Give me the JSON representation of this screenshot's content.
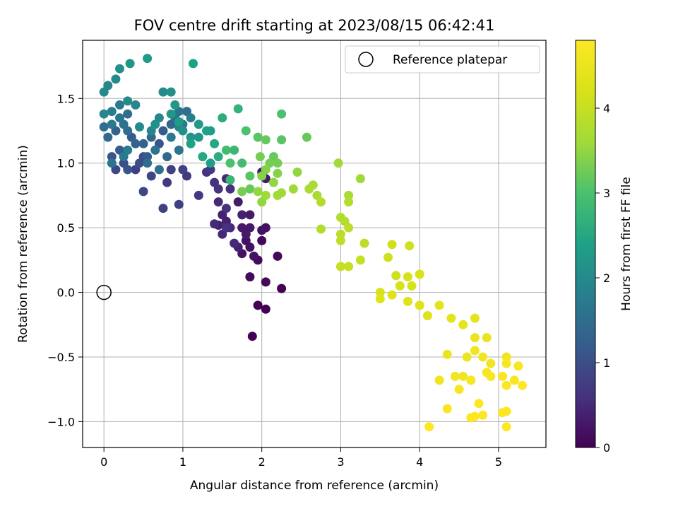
{
  "chart_data": {
    "type": "scatter",
    "title": "FOV centre drift starting at 2023/08/15 06:42:41",
    "xlabel": "Angular distance from reference (arcmin)",
    "ylabel": "Rotation from reference (arcmin)",
    "colorbar_label": "Hours from first FF file",
    "colormap": "viridis",
    "xlim": [
      -0.27,
      5.6
    ],
    "ylim": [
      -1.2,
      1.95
    ],
    "color_range": [
      0,
      4.8
    ],
    "x_ticks": [
      "0",
      "1",
      "2",
      "3",
      "4",
      "5"
    ],
    "y_ticks": [
      "−1.0",
      "−0.5",
      "0.0",
      "0.5",
      "1.0",
      "1.5"
    ],
    "colorbar_ticks": [
      "0",
      "1",
      "2",
      "3",
      "4"
    ],
    "grid": true,
    "legend_position": "top-right",
    "reference": {
      "name": "Reference platepar",
      "x": 0.0,
      "y": 0.0
    },
    "points": [
      [
        0.0,
        1.55,
        2.0
      ],
      [
        0.05,
        1.6,
        1.9
      ],
      [
        0.2,
        1.73,
        2.1
      ],
      [
        0.15,
        1.65,
        2.0
      ],
      [
        0.33,
        1.77,
        2.2
      ],
      [
        0.55,
        1.81,
        2.3
      ],
      [
        1.13,
        1.77,
        2.4
      ],
      [
        0.0,
        1.38,
        1.9
      ],
      [
        0.1,
        1.4,
        1.8
      ],
      [
        0.2,
        1.45,
        1.7
      ],
      [
        0.3,
        1.48,
        2.0
      ],
      [
        0.4,
        1.45,
        1.9
      ],
      [
        0.2,
        1.35,
        1.6
      ],
      [
        0.3,
        1.38,
        1.5
      ],
      [
        0.1,
        1.3,
        1.7
      ],
      [
        0.25,
        1.3,
        1.6
      ],
      [
        0.0,
        1.28,
        1.5
      ],
      [
        0.05,
        1.2,
        1.4
      ],
      [
        0.15,
        1.25,
        1.3
      ],
      [
        0.3,
        1.25,
        1.5
      ],
      [
        0.35,
        1.2,
        1.2
      ],
      [
        0.4,
        1.15,
        1.3
      ],
      [
        0.2,
        1.1,
        1.2
      ],
      [
        0.1,
        1.05,
        1.1
      ],
      [
        0.25,
        1.0,
        1.0
      ],
      [
        0.15,
        0.95,
        0.9
      ],
      [
        0.3,
        0.95,
        1.1
      ],
      [
        0.45,
        1.0,
        1.0
      ],
      [
        0.55,
        1.05,
        1.2
      ],
      [
        0.5,
        1.15,
        1.3
      ],
      [
        0.6,
        1.2,
        1.4
      ],
      [
        0.7,
        1.15,
        1.1
      ],
      [
        0.75,
        1.25,
        1.2
      ],
      [
        0.85,
        1.3,
        1.4
      ],
      [
        0.9,
        1.35,
        1.5
      ],
      [
        0.95,
        1.4,
        1.6
      ],
      [
        1.0,
        1.3,
        1.7
      ],
      [
        1.05,
        1.4,
        1.5
      ],
      [
        1.1,
        1.35,
        1.8
      ],
      [
        0.7,
        1.35,
        1.9
      ],
      [
        0.75,
        1.55,
        2.0
      ],
      [
        0.85,
        1.55,
        2.1
      ],
      [
        0.9,
        1.45,
        2.2
      ],
      [
        1.0,
        1.25,
        2.1
      ],
      [
        1.1,
        1.2,
        2.2
      ],
      [
        1.2,
        1.3,
        2.3
      ],
      [
        1.3,
        1.25,
        2.4
      ],
      [
        1.4,
        1.15,
        2.5
      ],
      [
        1.5,
        1.35,
        2.6
      ],
      [
        1.7,
        1.42,
        2.7
      ],
      [
        1.65,
        1.1,
        2.8
      ],
      [
        1.55,
        1.1,
        2.9
      ],
      [
        1.6,
        1.0,
        3.0
      ],
      [
        1.8,
        1.25,
        3.0
      ],
      [
        1.95,
        1.2,
        3.1
      ],
      [
        2.05,
        1.18,
        3.2
      ],
      [
        2.25,
        1.38,
        3.0
      ],
      [
        2.25,
        1.18,
        3.1
      ],
      [
        2.57,
        1.2,
        3.2
      ],
      [
        1.98,
        1.05,
        3.3
      ],
      [
        2.1,
        1.0,
        3.3
      ],
      [
        2.05,
        0.95,
        3.4
      ],
      [
        2.2,
        0.92,
        3.4
      ],
      [
        2.15,
        0.85,
        3.5
      ],
      [
        1.95,
        0.78,
        3.5
      ],
      [
        2.05,
        0.75,
        3.6
      ],
      [
        2.2,
        0.75,
        3.6
      ],
      [
        2.45,
        0.93,
        3.5
      ],
      [
        2.6,
        0.8,
        3.7
      ],
      [
        2.65,
        0.83,
        3.7
      ],
      [
        2.7,
        0.75,
        3.7
      ],
      [
        2.75,
        0.7,
        3.8
      ],
      [
        2.97,
        1.0,
        3.6
      ],
      [
        3.25,
        0.88,
        3.6
      ],
      [
        3.1,
        0.75,
        3.7
      ],
      [
        3.1,
        0.7,
        3.8
      ],
      [
        2.75,
        0.49,
        3.8
      ],
      [
        3.0,
        0.58,
        3.8
      ],
      [
        3.05,
        0.55,
        3.8
      ],
      [
        3.1,
        0.5,
        3.9
      ],
      [
        3.0,
        0.45,
        3.9
      ],
      [
        3.0,
        0.4,
        3.9
      ],
      [
        3.3,
        0.38,
        3.9
      ],
      [
        3.0,
        0.2,
        4.0
      ],
      [
        3.1,
        0.2,
        4.0
      ],
      [
        3.25,
        0.25,
        4.0
      ],
      [
        3.6,
        0.27,
        4.1
      ],
      [
        3.65,
        0.37,
        4.1
      ],
      [
        3.87,
        0.36,
        4.1
      ],
      [
        3.7,
        0.13,
        4.1
      ],
      [
        3.85,
        0.12,
        4.2
      ],
      [
        4.0,
        0.14,
        4.2
      ],
      [
        3.5,
        0.0,
        4.2
      ],
      [
        3.75,
        0.05,
        4.2
      ],
      [
        3.9,
        0.05,
        4.2
      ],
      [
        3.65,
        -0.02,
        4.3
      ],
      [
        3.5,
        -0.05,
        4.3
      ],
      [
        3.85,
        -0.07,
        4.3
      ],
      [
        4.0,
        -0.1,
        4.3
      ],
      [
        4.1,
        -0.18,
        4.3
      ],
      [
        4.25,
        -0.1,
        4.4
      ],
      [
        4.4,
        -0.2,
        4.4
      ],
      [
        4.55,
        -0.25,
        4.4
      ],
      [
        4.7,
        -0.2,
        4.4
      ],
      [
        4.85,
        -0.35,
        4.5
      ],
      [
        4.7,
        -0.35,
        4.5
      ],
      [
        4.35,
        -0.48,
        4.5
      ],
      [
        4.6,
        -0.5,
        4.5
      ],
      [
        4.7,
        -0.45,
        4.6
      ],
      [
        4.8,
        -0.5,
        4.6
      ],
      [
        4.9,
        -0.55,
        4.6
      ],
      [
        5.1,
        -0.5,
        4.6
      ],
      [
        5.1,
        -0.55,
        4.7
      ],
      [
        5.25,
        -0.57,
        4.7
      ],
      [
        4.85,
        -0.62,
        4.7
      ],
      [
        4.9,
        -0.65,
        4.7
      ],
      [
        5.05,
        -0.65,
        4.7
      ],
      [
        5.2,
        -0.68,
        4.7
      ],
      [
        5.1,
        -0.72,
        4.8
      ],
      [
        5.3,
        -0.72,
        4.8
      ],
      [
        4.25,
        -0.68,
        4.6
      ],
      [
        4.45,
        -0.65,
        4.6
      ],
      [
        4.55,
        -0.65,
        4.6
      ],
      [
        4.5,
        -0.75,
        4.7
      ],
      [
        4.65,
        -0.68,
        4.7
      ],
      [
        4.35,
        -0.9,
        4.7
      ],
      [
        4.75,
        -0.86,
        4.8
      ],
      [
        4.65,
        -0.97,
        4.8
      ],
      [
        4.7,
        -0.96,
        4.8
      ],
      [
        4.8,
        -0.95,
        4.8
      ],
      [
        5.05,
        -0.93,
        4.8
      ],
      [
        5.1,
        -0.92,
        4.8
      ],
      [
        5.1,
        -1.04,
        4.8
      ],
      [
        4.12,
        -1.04,
        4.8
      ],
      [
        0.5,
        1.05,
        1.0
      ],
      [
        0.6,
        0.9,
        0.9
      ],
      [
        0.4,
        0.95,
        0.8
      ],
      [
        0.85,
        0.95,
        0.8
      ],
      [
        0.8,
        0.85,
        0.7
      ],
      [
        0.5,
        0.78,
        0.9
      ],
      [
        0.75,
        0.65,
        0.8
      ],
      [
        0.95,
        0.68,
        0.8
      ],
      [
        1.0,
        0.95,
        0.8
      ],
      [
        1.05,
        0.9,
        0.7
      ],
      [
        1.2,
        0.75,
        0.7
      ],
      [
        1.3,
        0.93,
        0.6
      ],
      [
        1.35,
        0.95,
        0.7
      ],
      [
        1.4,
        0.85,
        0.6
      ],
      [
        1.45,
        0.8,
        0.6
      ],
      [
        1.55,
        0.88,
        0.5
      ],
      [
        1.6,
        0.8,
        0.6
      ],
      [
        1.55,
        0.65,
        0.6
      ],
      [
        1.45,
        0.7,
        0.5
      ],
      [
        1.4,
        0.53,
        0.5
      ],
      [
        1.5,
        0.6,
        0.4
      ],
      [
        1.55,
        0.55,
        0.4
      ],
      [
        1.6,
        0.5,
        0.5
      ],
      [
        1.5,
        0.45,
        0.5
      ],
      [
        1.45,
        0.52,
        0.4
      ],
      [
        1.55,
        0.5,
        0.6
      ],
      [
        1.65,
        0.38,
        0.5
      ],
      [
        1.7,
        0.35,
        0.4
      ],
      [
        1.75,
        0.6,
        0.4
      ],
      [
        1.7,
        0.7,
        0.3
      ],
      [
        1.75,
        0.5,
        0.3
      ],
      [
        1.8,
        0.45,
        0.3
      ],
      [
        1.85,
        0.5,
        0.3
      ],
      [
        1.8,
        0.4,
        0.2
      ],
      [
        1.75,
        0.3,
        0.2
      ],
      [
        1.85,
        0.35,
        0.2
      ],
      [
        1.9,
        0.28,
        0.2
      ],
      [
        1.95,
        0.25,
        0.1
      ],
      [
        1.85,
        0.6,
        0.3
      ],
      [
        2.0,
        0.48,
        0.2
      ],
      [
        2.05,
        0.5,
        0.2
      ],
      [
        2.0,
        0.4,
        0.1
      ],
      [
        2.2,
        0.28,
        0.1
      ],
      [
        2.0,
        0.93,
        0.3
      ],
      [
        2.05,
        0.88,
        0.3
      ],
      [
        1.85,
        0.12,
        0.1
      ],
      [
        2.05,
        0.08,
        0.1
      ],
      [
        2.25,
        0.03,
        0.0
      ],
      [
        1.95,
        -0.1,
        0.0
      ],
      [
        2.05,
        -0.13,
        0.0
      ],
      [
        1.88,
        -0.34,
        0.0
      ],
      [
        0.1,
        1.0,
        1.6
      ],
      [
        0.25,
        1.05,
        1.7
      ],
      [
        0.3,
        1.1,
        1.8
      ],
      [
        0.55,
        1.0,
        1.5
      ],
      [
        0.65,
        1.1,
        1.6
      ],
      [
        0.7,
        0.95,
        1.5
      ],
      [
        0.8,
        1.05,
        1.4
      ],
      [
        0.85,
        1.2,
        1.7
      ],
      [
        0.95,
        1.1,
        1.6
      ],
      [
        0.95,
        1.28,
        1.9
      ],
      [
        1.2,
        1.2,
        2.2
      ],
      [
        1.35,
        1.25,
        2.3
      ],
      [
        1.25,
        1.05,
        2.5
      ],
      [
        1.35,
        1.0,
        2.4
      ],
      [
        1.45,
        1.05,
        2.6
      ],
      [
        1.75,
        1.0,
        2.9
      ],
      [
        1.85,
        0.9,
        3.1
      ],
      [
        1.85,
        0.8,
        3.2
      ],
      [
        1.75,
        0.78,
        3.3
      ],
      [
        2.0,
        0.7,
        3.5
      ],
      [
        2.25,
        0.77,
        3.6
      ],
      [
        2.4,
        0.8,
        3.6
      ],
      [
        2.15,
        1.05,
        3.2
      ],
      [
        2.0,
        0.9,
        3.4
      ],
      [
        2.2,
        1.0,
        3.3
      ],
      [
        1.6,
        0.87,
        2.8
      ],
      [
        0.45,
        1.28,
        2.0
      ],
      [
        0.6,
        1.25,
        1.9
      ],
      [
        0.65,
        1.3,
        2.1
      ],
      [
        0.85,
        1.38,
        2.2
      ],
      [
        0.95,
        1.32,
        2.3
      ],
      [
        1.1,
        1.15,
        2.4
      ]
    ]
  }
}
